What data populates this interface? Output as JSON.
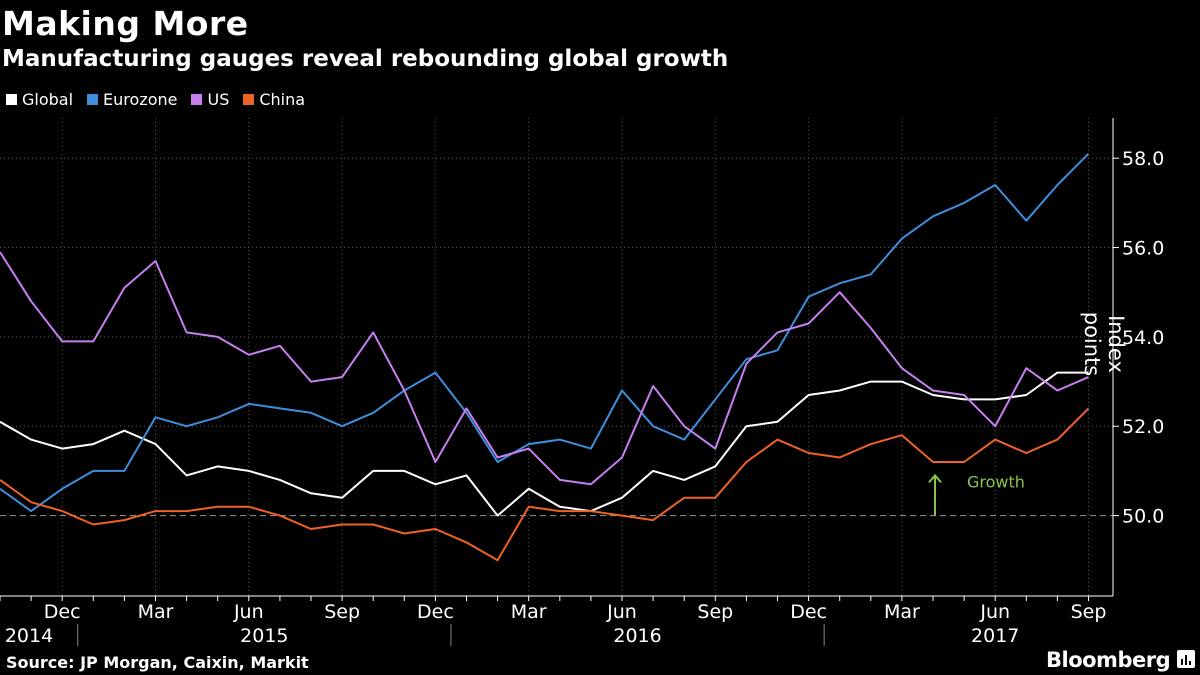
{
  "chart_data": {
    "type": "line",
    "title": "Making More",
    "subtitle": "Manufacturing gauges reveal rebounding global growth",
    "ylabel": "Index points",
    "xlabel": "",
    "ylim": [
      48.2,
      58.9
    ],
    "yticks": [
      50.0,
      52.0,
      54.0,
      56.0,
      58.0
    ],
    "ytick_labels": [
      "50.0",
      "52.0",
      "54.0",
      "56.0",
      "58.0"
    ],
    "x": [
      "2014-10",
      "2014-11",
      "2014-12",
      "2015-01",
      "2015-02",
      "2015-03",
      "2015-04",
      "2015-05",
      "2015-06",
      "2015-07",
      "2015-08",
      "2015-09",
      "2015-10",
      "2015-11",
      "2015-12",
      "2016-01",
      "2016-02",
      "2016-03",
      "2016-04",
      "2016-05",
      "2016-06",
      "2016-07",
      "2016-08",
      "2016-09",
      "2016-10",
      "2016-11",
      "2016-12",
      "2017-01",
      "2017-02",
      "2017-03",
      "2017-04",
      "2017-05",
      "2017-06",
      "2017-07",
      "2017-08",
      "2017-09"
    ],
    "month_ticks": [
      {
        "index": 2,
        "label": "Dec"
      },
      {
        "index": 5,
        "label": "Mar"
      },
      {
        "index": 8,
        "label": "Jun"
      },
      {
        "index": 11,
        "label": "Sep"
      },
      {
        "index": 14,
        "label": "Dec"
      },
      {
        "index": 17,
        "label": "Mar"
      },
      {
        "index": 20,
        "label": "Jun"
      },
      {
        "index": 23,
        "label": "Sep"
      },
      {
        "index": 26,
        "label": "Dec"
      },
      {
        "index": 29,
        "label": "Mar"
      },
      {
        "index": 32,
        "label": "Jun"
      },
      {
        "index": 35,
        "label": "Sep"
      }
    ],
    "year_labels": [
      {
        "center_index": 0.5,
        "label": "2014"
      },
      {
        "center_index": 8.5,
        "label": "2015"
      },
      {
        "center_index": 20.5,
        "label": "2016"
      },
      {
        "center_index": 32,
        "label": "2017"
      }
    ],
    "year_separators": [
      2.5,
      14.5,
      26.5
    ],
    "series": [
      {
        "name": "Global",
        "color": "#ffffff",
        "values": [
          52.1,
          51.7,
          51.5,
          51.6,
          51.9,
          51.6,
          50.9,
          51.1,
          51.0,
          50.8,
          50.5,
          50.4,
          51.0,
          51.0,
          50.7,
          50.9,
          50.0,
          50.6,
          50.2,
          50.1,
          50.4,
          51.0,
          50.8,
          51.1,
          52.0,
          52.1,
          52.7,
          52.8,
          53.0,
          53.0,
          52.7,
          52.6,
          52.6,
          52.7,
          53.2,
          53.2
        ]
      },
      {
        "name": "Eurozone",
        "color": "#3e8edb",
        "values": [
          50.6,
          50.1,
          50.6,
          51.0,
          51.0,
          52.2,
          52.0,
          52.2,
          52.5,
          52.4,
          52.3,
          52.0,
          52.3,
          52.8,
          53.2,
          52.3,
          51.2,
          51.6,
          51.7,
          51.5,
          52.8,
          52.0,
          51.7,
          52.6,
          53.5,
          53.7,
          54.9,
          55.2,
          55.4,
          56.2,
          56.7,
          57.0,
          57.4,
          56.6,
          57.4,
          58.1
        ]
      },
      {
        "name": "US",
        "color": "#c77ff0",
        "values": [
          55.9,
          54.8,
          53.9,
          53.9,
          55.1,
          55.7,
          54.1,
          54.0,
          53.6,
          53.8,
          53.0,
          53.1,
          54.1,
          52.8,
          51.2,
          52.4,
          51.3,
          51.5,
          50.8,
          50.7,
          51.3,
          52.9,
          52.0,
          51.5,
          53.4,
          54.1,
          54.3,
          55.0,
          54.2,
          53.3,
          52.8,
          52.7,
          52.0,
          53.3,
          52.8,
          53.1
        ]
      },
      {
        "name": "China",
        "color": "#ee6325",
        "values": [
          50.8,
          50.3,
          50.1,
          49.8,
          49.9,
          50.1,
          50.1,
          50.2,
          50.2,
          50.0,
          49.7,
          49.8,
          49.8,
          49.6,
          49.7,
          49.4,
          49.0,
          50.2,
          50.1,
          50.1,
          50.0,
          49.9,
          50.4,
          50.4,
          51.2,
          51.7,
          51.4,
          51.3,
          51.6,
          51.8,
          51.2,
          51.2,
          51.7,
          51.4,
          51.7,
          52.4
        ]
      }
    ],
    "reference_line": {
      "value": 50.0,
      "color": "#999999"
    },
    "annotation": {
      "label": "Growth",
      "index": 30,
      "from": 50.0,
      "to": 50.9,
      "color": "#8bc34a"
    },
    "grid": true,
    "legend": "top-left"
  },
  "source": "Source: JP Morgan, Caixin, Markit",
  "brand": "Bloomberg"
}
